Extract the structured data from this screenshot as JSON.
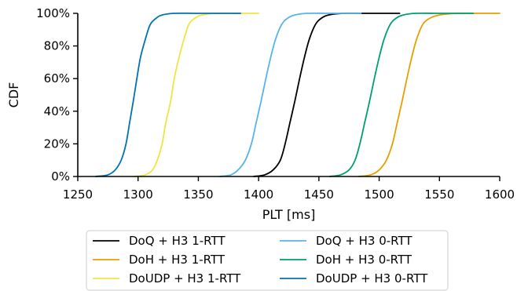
{
  "chart_data": {
    "type": "line",
    "title": "",
    "xlabel": "PLT [ms]",
    "ylabel": "CDF",
    "xlim": [
      1250,
      1600
    ],
    "ylim": [
      0,
      1
    ],
    "xticks": [
      1250,
      1300,
      1350,
      1400,
      1450,
      1500,
      1550,
      1600
    ],
    "xtick_labels": [
      "1250",
      "1300",
      "1350",
      "1400",
      "1450",
      "1500",
      "1550",
      "1600"
    ],
    "yticks": [
      0,
      0.2,
      0.4,
      0.6,
      0.8,
      1.0
    ],
    "ytick_labels": [
      "0%",
      "20%",
      "40%",
      "60%",
      "80%",
      "100%"
    ],
    "grid": false,
    "legend_placement": "bottom",
    "series": [
      {
        "name": "DoQ + H3 1-RTT",
        "color": "#000000",
        "x": [
          1396,
          1405,
          1412,
          1418,
          1422,
          1426,
          1430,
          1434,
          1438,
          1442,
          1447,
          1452,
          1458,
          1470,
          1487,
          1517
        ],
        "y": [
          0.0,
          0.01,
          0.04,
          0.1,
          0.2,
          0.33,
          0.46,
          0.6,
          0.73,
          0.84,
          0.93,
          0.97,
          0.99,
          1.0,
          1.0,
          1.0
        ]
      },
      {
        "name": "DoH + H3 1-RTT",
        "color": "#E69F00",
        "x": [
          1483,
          1493,
          1500,
          1506,
          1511,
          1515,
          1519,
          1523,
          1527,
          1531,
          1536,
          1542,
          1550,
          1565,
          1580,
          1600
        ],
        "y": [
          0.0,
          0.01,
          0.04,
          0.1,
          0.2,
          0.33,
          0.46,
          0.6,
          0.73,
          0.84,
          0.93,
          0.97,
          0.99,
          1.0,
          1.0,
          1.0
        ]
      },
      {
        "name": "DoUDP + H3 1-RTT",
        "color": "#F0E442",
        "x": [
          1297,
          1306,
          1312,
          1316,
          1320,
          1323,
          1327,
          1330,
          1334,
          1338,
          1342,
          1347,
          1353,
          1365,
          1385,
          1400
        ],
        "y": [
          0.0,
          0.01,
          0.04,
          0.1,
          0.2,
          0.33,
          0.46,
          0.6,
          0.73,
          0.84,
          0.93,
          0.97,
          0.99,
          1.0,
          1.0,
          1.0
        ]
      },
      {
        "name": "DoQ + H3 0-RTT",
        "color": "#56B4E9",
        "x": [
          1368,
          1377,
          1383,
          1389,
          1394,
          1398,
          1402,
          1406,
          1410,
          1414,
          1419,
          1424,
          1430,
          1440,
          1460,
          1485
        ],
        "y": [
          0.0,
          0.01,
          0.04,
          0.1,
          0.2,
          0.33,
          0.46,
          0.6,
          0.73,
          0.84,
          0.93,
          0.97,
          0.99,
          1.0,
          1.0,
          1.0
        ]
      },
      {
        "name": "DoH + H3 0-RTT",
        "color": "#009E73",
        "x": [
          1459,
          1468,
          1475,
          1480,
          1484,
          1488,
          1492,
          1496,
          1500,
          1504,
          1509,
          1514,
          1520,
          1530,
          1550,
          1578
        ],
        "y": [
          0.0,
          0.01,
          0.04,
          0.1,
          0.2,
          0.33,
          0.46,
          0.6,
          0.73,
          0.84,
          0.93,
          0.97,
          0.99,
          1.0,
          1.0,
          1.0
        ]
      },
      {
        "name": "DoUDP + H3 0-RTT",
        "color": "#0072B2",
        "x": [
          1265,
          1275,
          1281,
          1286,
          1290,
          1293,
          1296,
          1299,
          1302,
          1306,
          1310,
          1315,
          1320,
          1330,
          1350,
          1385
        ],
        "y": [
          0.0,
          0.01,
          0.04,
          0.1,
          0.2,
          0.33,
          0.46,
          0.6,
          0.73,
          0.84,
          0.93,
          0.97,
          0.99,
          1.0,
          1.0,
          1.0
        ]
      }
    ],
    "legend_order": [
      0,
      3,
      1,
      4,
      2,
      5
    ]
  }
}
